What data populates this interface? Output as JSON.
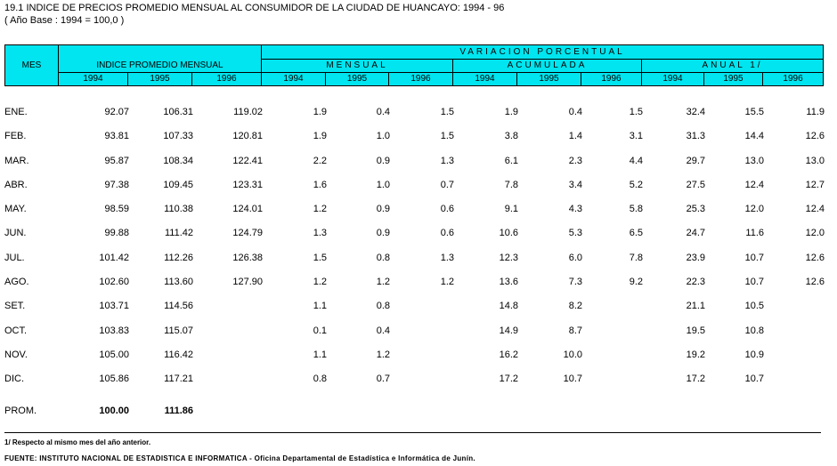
{
  "title": "19.1 INDICE DE PRECIOS PROMEDIO MENSUAL AL CONSUMIDOR DE LA CIUDAD DE HUANCAYO: 1994 - 96",
  "subtitle": "( Año Base : 1994 = 100,0 )",
  "header": {
    "mes": "MES",
    "indice": "INDICE PROMEDIO MENSUAL",
    "variacion": "VARIACION PORCENTUAL",
    "mensual": "MENSUAL",
    "acumulada": "ACUMULADA",
    "anual": "ANUAL 1/",
    "years": [
      "1994",
      "1995",
      "1996",
      "1994",
      "1995",
      "1996",
      "1994",
      "1995",
      "1996",
      "1994",
      "1995",
      "1996"
    ]
  },
  "rows": [
    {
      "mes": "ENE.",
      "v": [
        "92.07",
        "106.31",
        "119.02",
        "1.9",
        "0.4",
        "1.5",
        "1.9",
        "0.4",
        "1.5",
        "32.4",
        "15.5",
        "11.9"
      ]
    },
    {
      "mes": "FEB.",
      "v": [
        "93.81",
        "107.33",
        "120.81",
        "1.9",
        "1.0",
        "1.5",
        "3.8",
        "1.4",
        "3.1",
        "31.3",
        "14.4",
        "12.6"
      ]
    },
    {
      "mes": "MAR.",
      "v": [
        "95.87",
        "108.34",
        "122.41",
        "2.2",
        "0.9",
        "1.3",
        "6.1",
        "2.3",
        "4.4",
        "29.7",
        "13.0",
        "13.0"
      ]
    },
    {
      "mes": "ABR.",
      "v": [
        "97.38",
        "109.45",
        "123.31",
        "1.6",
        "1.0",
        "0.7",
        "7.8",
        "3.4",
        "5.2",
        "27.5",
        "12.4",
        "12.7"
      ]
    },
    {
      "mes": "MAY.",
      "v": [
        "98.59",
        "110.38",
        "124.01",
        "1.2",
        "0.9",
        "0.6",
        "9.1",
        "4.3",
        "5.8",
        "25.3",
        "12.0",
        "12.4"
      ]
    },
    {
      "mes": "JUN.",
      "v": [
        "99.88",
        "111.42",
        "124.79",
        "1.3",
        "0.9",
        "0.6",
        "10.6",
        "5.3",
        "6.5",
        "24.7",
        "11.6",
        "12.0"
      ]
    },
    {
      "mes": "JUL.",
      "v": [
        "101.42",
        "112.26",
        "126.38",
        "1.5",
        "0.8",
        "1.3",
        "12.3",
        "6.0",
        "7.8",
        "23.9",
        "10.7",
        "12.6"
      ]
    },
    {
      "mes": "AGO.",
      "v": [
        "102.60",
        "113.60",
        "127.90",
        "1.2",
        "1.2",
        "1.2",
        "13.6",
        "7.3",
        "9.2",
        "22.3",
        "10.7",
        "12.6"
      ]
    },
    {
      "mes": "SET.",
      "v": [
        "103.71",
        "114.56",
        "",
        "1.1",
        "0.8",
        "",
        "14.8",
        "8.2",
        "",
        "21.1",
        "10.5",
        ""
      ]
    },
    {
      "mes": "OCT.",
      "v": [
        "103.83",
        "115.07",
        "",
        "0.1",
        "0.4",
        "",
        "14.9",
        "8.7",
        "",
        "19.5",
        "10.8",
        ""
      ]
    },
    {
      "mes": "NOV.",
      "v": [
        "105.00",
        "116.42",
        "",
        "1.1",
        "1.2",
        "",
        "16.2",
        "10.0",
        "",
        "19.2",
        "10.9",
        ""
      ]
    },
    {
      "mes": "DIC.",
      "v": [
        "105.86",
        "117.21",
        "",
        "0.8",
        "0.7",
        "",
        "17.2",
        "10.7",
        "",
        "17.2",
        "10.7",
        ""
      ]
    }
  ],
  "prom": {
    "mes": "PROM.",
    "v1994": "100.00",
    "v1995": "111.86"
  },
  "note": "1/ Respecto al mismo mes del año anterior.",
  "source": "FUENTE: INSTITUTO NACIONAL DE ESTADISTICA E INFORMATICA - Oficina Departamental de Estadística e Informática de Junín."
}
